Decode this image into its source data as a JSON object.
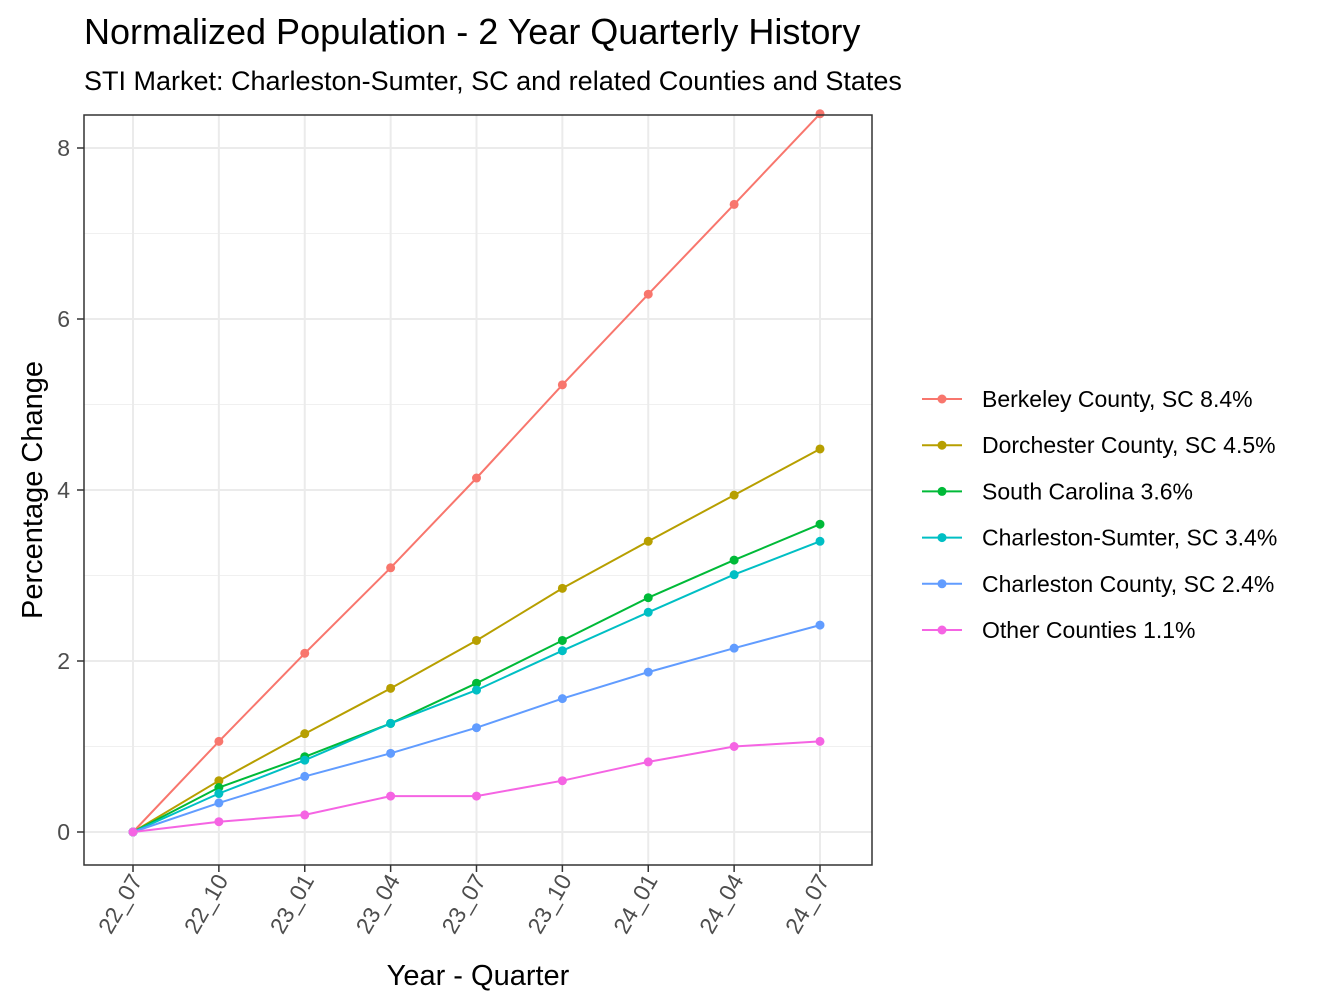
{
  "chart_data": {
    "type": "line",
    "title": "Normalized Population - 2 Year Quarterly History",
    "subtitle": "STI Market: Charleston-Sumter, SC and related Counties and States",
    "xlabel": "Year - Quarter",
    "ylabel": "Percentage Change",
    "categories": [
      "22_07",
      "22_10",
      "23_01",
      "23_04",
      "23_07",
      "23_10",
      "24_01",
      "24_04",
      "24_07"
    ],
    "ylim": [
      -0.4,
      8.8
    ],
    "yticks": [
      0,
      2,
      4,
      6,
      8
    ],
    "grid": true,
    "legend_position": "right",
    "series": [
      {
        "name": "Berkeley County, SC 8.4%",
        "color": "#F8766D",
        "values": [
          0,
          1.06,
          2.09,
          3.09,
          4.14,
          5.23,
          6.29,
          7.34,
          8.4
        ]
      },
      {
        "name": "Dorchester County, SC 4.5%",
        "color": "#B79F00",
        "values": [
          0,
          0.6,
          1.15,
          1.68,
          2.24,
          2.85,
          3.4,
          3.94,
          4.48
        ]
      },
      {
        "name": "South Carolina 3.6%",
        "color": "#00BA38",
        "values": [
          0,
          0.52,
          0.88,
          1.27,
          1.74,
          2.24,
          2.74,
          3.18,
          3.6
        ]
      },
      {
        "name": "Charleston-Sumter, SC 3.4%",
        "color": "#00BFC4",
        "values": [
          0,
          0.45,
          0.84,
          1.27,
          1.66,
          2.12,
          2.57,
          3.01,
          3.4
        ]
      },
      {
        "name": "Charleston County, SC 2.4%",
        "color": "#619CFF",
        "values": [
          0,
          0.34,
          0.65,
          0.92,
          1.22,
          1.56,
          1.87,
          2.15,
          2.42
        ]
      },
      {
        "name": "Other Counties 1.1%",
        "color": "#F564E3",
        "values": [
          0,
          0.12,
          0.2,
          0.42,
          0.42,
          0.6,
          0.82,
          1.0,
          1.06
        ]
      }
    ]
  }
}
